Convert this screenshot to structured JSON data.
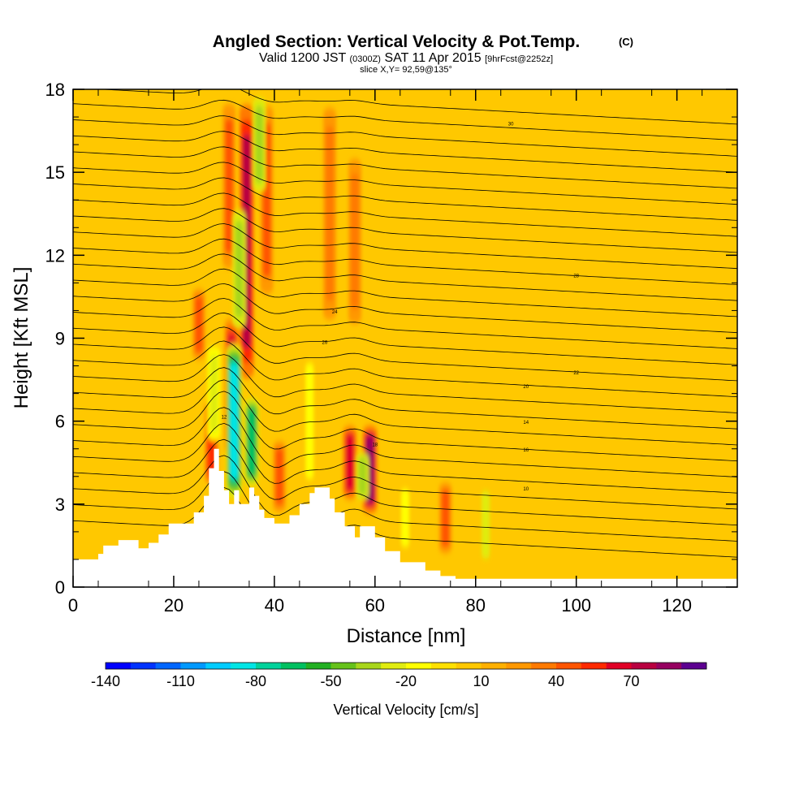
{
  "chart_data": {
    "type": "heatmap",
    "title": "Angled Section: Vertical Velocity & Pot.Temp.",
    "title_suffix": "(C)",
    "subtitle": {
      "valid": "Valid 1200 JST",
      "utc": "(0300Z)",
      "date": "SAT 11 Apr 2015",
      "forecast": "[9hrFcst@2252z]"
    },
    "slice_label": "slice X,Y= 92,59@135°",
    "xlabel": "Distance [nm]",
    "ylabel": "Height [Kft MSL]",
    "xlim": [
      0,
      132
    ],
    "ylim": [
      0,
      18
    ],
    "x_ticks": [
      "0",
      "20",
      "40",
      "60",
      "80",
      "100",
      "120"
    ],
    "y_ticks": [
      "0",
      "3",
      "6",
      "9",
      "12",
      "15",
      "18"
    ],
    "colorbar": {
      "label": "Vertical Velocity [cm/s]",
      "tick_labels": [
        "-140",
        "-110",
        "-80",
        "-50",
        "-20",
        "10",
        "40",
        "70"
      ],
      "min": -140,
      "max": 90,
      "step": 10,
      "colors": [
        "#0000ff",
        "#0033ff",
        "#0066ff",
        "#0099ff",
        "#00ccff",
        "#00e5e5",
        "#00d29b",
        "#00c060",
        "#22b022",
        "#66c21a",
        "#a8d61a",
        "#e0ec10",
        "#ffff00",
        "#ffe000",
        "#ffc800",
        "#ffb000",
        "#ff9800",
        "#ff7a00",
        "#ff5500",
        "#ff2a00",
        "#e00026",
        "#b80040",
        "#960060",
        "#5c0090"
      ]
    },
    "background_color": "#ffc800",
    "terrain": [
      [
        0,
        1
      ],
      [
        5,
        1
      ],
      [
        5,
        1.2
      ],
      [
        6,
        1.2
      ],
      [
        6,
        1.5
      ],
      [
        9,
        1.5
      ],
      [
        9,
        1.7
      ],
      [
        13,
        1.7
      ],
      [
        13,
        1.4
      ],
      [
        15,
        1.4
      ],
      [
        15,
        1.6
      ],
      [
        17,
        1.6
      ],
      [
        17,
        1.9
      ],
      [
        19,
        1.9
      ],
      [
        19,
        2.3
      ],
      [
        24,
        2.3
      ],
      [
        24,
        2.7
      ],
      [
        26,
        2.7
      ],
      [
        26,
        3.3
      ],
      [
        27,
        3.3
      ],
      [
        27,
        4.3
      ],
      [
        28,
        4.3
      ],
      [
        28,
        5
      ],
      [
        29,
        5
      ],
      [
        29,
        4.2
      ],
      [
        30,
        4.2
      ],
      [
        30,
        3.5
      ],
      [
        31,
        3.5
      ],
      [
        31,
        3
      ],
      [
        32,
        3
      ],
      [
        32,
        3.5
      ],
      [
        33,
        3.5
      ],
      [
        33,
        3
      ],
      [
        35,
        3
      ],
      [
        35,
        3.6
      ],
      [
        36,
        3.6
      ],
      [
        36,
        3.3
      ],
      [
        37,
        3.3
      ],
      [
        37,
        2.8
      ],
      [
        38,
        2.8
      ],
      [
        38,
        2.5
      ],
      [
        40,
        2.5
      ],
      [
        40,
        2.3
      ],
      [
        43,
        2.3
      ],
      [
        43,
        2.6
      ],
      [
        45,
        2.6
      ],
      [
        45,
        3
      ],
      [
        47,
        3
      ],
      [
        47,
        3.4
      ],
      [
        48,
        3.4
      ],
      [
        48,
        3.6
      ],
      [
        51,
        3.6
      ],
      [
        51,
        3.2
      ],
      [
        52,
        3.2
      ],
      [
        52,
        2.7
      ],
      [
        54,
        2.7
      ],
      [
        54,
        2.2
      ],
      [
        56,
        2.2
      ],
      [
        56,
        1.8
      ],
      [
        57,
        1.8
      ],
      [
        57,
        2.2
      ],
      [
        60,
        2.2
      ],
      [
        60,
        1.8
      ],
      [
        62,
        1.8
      ],
      [
        62,
        1.3
      ],
      [
        65,
        1.3
      ],
      [
        65,
        0.9
      ],
      [
        70,
        0.9
      ],
      [
        70,
        0.6
      ],
      [
        73,
        0.6
      ],
      [
        73,
        0.4
      ],
      [
        76,
        0.4
      ],
      [
        76,
        0.3
      ],
      [
        132,
        0.3
      ]
    ],
    "velocity_features": [
      {
        "x": 25,
        "z0": 8,
        "z1": 11,
        "w": 40
      },
      {
        "x": 27.5,
        "z0": 3.5,
        "z1": 7,
        "w": 50
      },
      {
        "x": 31.5,
        "z0": 4.5,
        "z1": 10,
        "w": 60
      },
      {
        "x": 34.5,
        "z0": 7,
        "z1": 18,
        "w": 70
      },
      {
        "x": 31,
        "z0": 11,
        "z1": 18,
        "w": 45
      },
      {
        "x": 38.5,
        "z0": 10,
        "z1": 18,
        "w": 40
      },
      {
        "x": 51,
        "z0": 9,
        "z1": 18,
        "w": 35
      },
      {
        "x": 56,
        "z0": 9,
        "z1": 16,
        "w": 35
      },
      {
        "x": 55,
        "z0": 3,
        "z1": 6,
        "w": 60
      },
      {
        "x": 59,
        "z0": 2.5,
        "z1": 6,
        "w": 80
      },
      {
        "x": 41,
        "z0": 2.5,
        "z1": 5.5,
        "w": 45
      },
      {
        "x": 74,
        "z0": 1,
        "z1": 4,
        "w": 45
      },
      {
        "x": 32,
        "z0": 3,
        "z1": 9,
        "w": -90
      },
      {
        "x": 35.5,
        "z0": 3.5,
        "z1": 7,
        "w": -70
      },
      {
        "x": 33,
        "z0": 9,
        "z1": 14,
        "w": -40
      },
      {
        "x": 37,
        "z0": 14,
        "z1": 18,
        "w": -35
      },
      {
        "x": 28,
        "z0": 5,
        "z1": 9,
        "w": -30
      },
      {
        "x": 47,
        "z0": 3,
        "z1": 9,
        "w": -20
      },
      {
        "x": 57.5,
        "z0": 3,
        "z1": 5,
        "w": -40
      },
      {
        "x": 66,
        "z0": 1,
        "z1": 4,
        "w": -20
      },
      {
        "x": 82,
        "z0": 0.5,
        "z1": 4,
        "w": -25
      }
    ],
    "isentropes": {
      "levels": [
        10,
        12,
        14,
        16,
        18,
        20,
        22,
        24,
        26,
        28,
        30,
        32,
        34,
        36,
        38,
        40,
        42,
        44,
        46,
        48,
        50,
        52,
        54,
        56,
        58,
        60,
        62,
        64
      ],
      "label_positions": [
        {
          "label": "10",
          "x": 90,
          "z": 3.5
        },
        {
          "label": "14",
          "x": 90,
          "z": 5.9
        },
        {
          "label": "16",
          "x": 90,
          "z": 4.9
        },
        {
          "label": "18",
          "x": 60,
          "z": 5.1
        },
        {
          "label": "20",
          "x": 90,
          "z": 7.2
        },
        {
          "label": "22",
          "x": 100,
          "z": 7.7
        },
        {
          "label": "24",
          "x": 52,
          "z": 9.9
        },
        {
          "label": "26",
          "x": 50,
          "z": 8.8
        },
        {
          "label": "28",
          "x": 100,
          "z": 11.2
        },
        {
          "label": "30",
          "x": 87,
          "z": 16.7
        },
        {
          "label": "12",
          "x": 30,
          "z": 6.1
        }
      ]
    }
  }
}
